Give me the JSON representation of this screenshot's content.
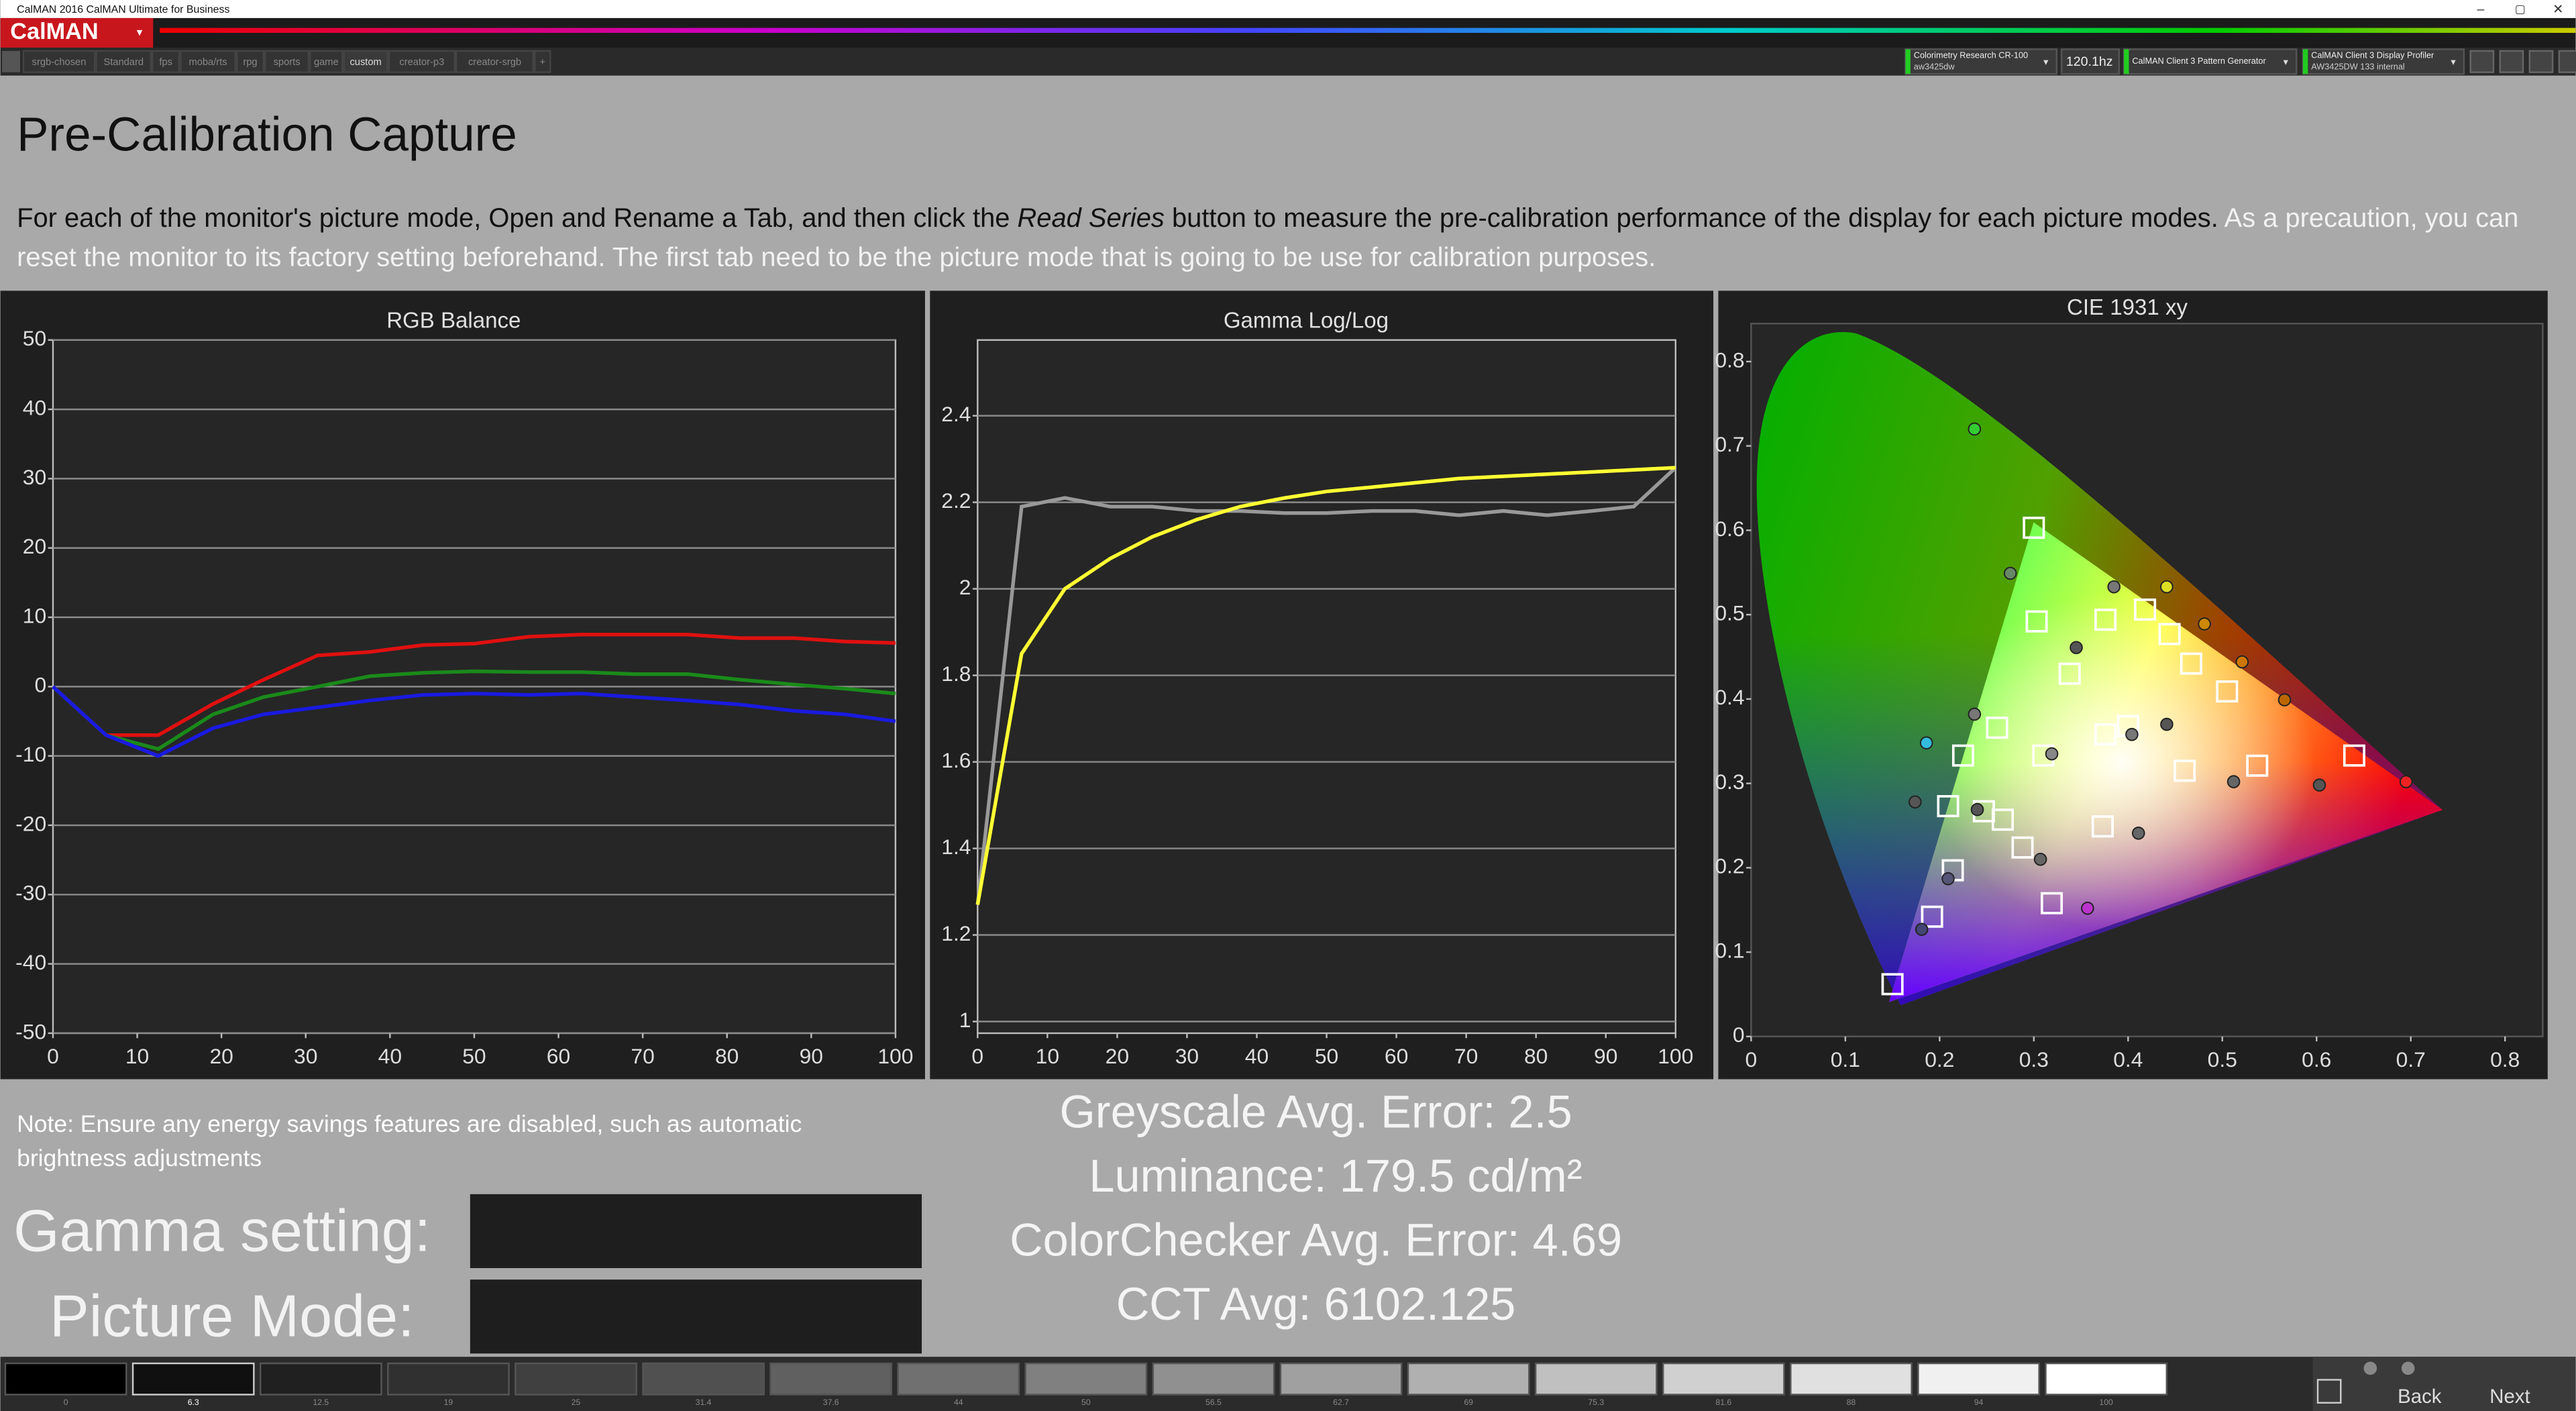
{
  "window": {
    "title": "CalMAN 2016 CalMAN Ultimate for Business"
  },
  "logo": "CalMAN",
  "tabs": [
    "srgb-chosen",
    "Standard",
    "fps",
    "moba/rts",
    "rpg",
    "sports",
    "game",
    "custom",
    "creator-p3",
    "creator-srgb",
    "+"
  ],
  "toolbar": {
    "meter": "Colorimetry Research CR-100",
    "meter_sub": "aw3425dw",
    "refresh": "120.1hz",
    "generator": "CalMAN Client 3 Pattern Generator",
    "profiler": "CalMAN Client 3 Display Profiler",
    "profiler_sub": "AW3425DW 133 internal"
  },
  "header": {
    "title": "Pre-Calibration Capture",
    "text_1": "For each of the monitor's picture mode, Open and Rename a Tab, and then click the",
    "text_em": "Read Series",
    "text_2": "button to measure the pre-calibration performance of the display for each picture modes.",
    "text_note": "As a precaution, you can reset the monitor to its factory setting beforehand. The first tab need to be the picture mode that is going to be use for calibration purposes."
  },
  "chart_data": [
    {
      "type": "line",
      "title": "RGB Balance",
      "x": [
        0,
        6.3,
        12.5,
        19,
        25,
        31.4,
        37.6,
        44,
        50,
        56.5,
        62.7,
        69,
        75.3,
        81.6,
        88,
        94,
        100
      ],
      "series": [
        {
          "color": "#e01010",
          "values": [
            0,
            -7,
            -7,
            -2.5,
            1,
            4.5,
            5,
            6,
            6.2,
            7.2,
            7.5,
            7.5,
            7.5,
            7,
            7,
            6.5,
            6.3
          ]
        },
        {
          "color": "#1a8a1a",
          "values": [
            0,
            -7,
            -9,
            -4,
            -1.5,
            0,
            1.5,
            2,
            2.2,
            2.1,
            2.1,
            1.8,
            1.8,
            1,
            0.3,
            -0.3,
            -1
          ]
        },
        {
          "color": "#1a1ae0",
          "values": [
            0,
            -7,
            -10,
            -6,
            -4,
            -3,
            -2,
            -1.2,
            -1,
            -1.2,
            -1,
            -1.5,
            -2,
            -2.6,
            -3.5,
            -4,
            -5
          ]
        }
      ],
      "xlim": [
        0,
        100
      ],
      "ylim": [
        -50,
        50
      ],
      "xticks": [
        0,
        10,
        20,
        30,
        40,
        50,
        60,
        70,
        80,
        90,
        100
      ],
      "yticks": [
        -50,
        -40,
        -30,
        -20,
        -10,
        0,
        10,
        20,
        30,
        40,
        50
      ],
      "grid": true
    },
    {
      "type": "line",
      "title": "Gamma Log/Log",
      "x": [
        0,
        6.3,
        12.5,
        19,
        25,
        31.4,
        37.6,
        44,
        50,
        56.5,
        62.7,
        69,
        75.3,
        81.6,
        88,
        94,
        100
      ],
      "series": [
        {
          "color": "#999999",
          "values": [
            1.27,
            2.19,
            2.21,
            2.19,
            2.19,
            2.18,
            2.18,
            2.175,
            2.175,
            2.18,
            2.18,
            2.17,
            2.18,
            2.17,
            2.18,
            2.19,
            2.28
          ]
        },
        {
          "color": "#ffff33",
          "values": [
            1.27,
            1.85,
            2.0,
            2.07,
            2.12,
            2.16,
            2.19,
            2.21,
            2.225,
            2.235,
            2.245,
            2.255,
            2.26,
            2.265,
            2.27,
            2.275,
            2.28
          ]
        }
      ],
      "xlim": [
        0,
        100
      ],
      "ylim": [
        0.973,
        2.575
      ],
      "xticks": [
        0,
        10,
        20,
        30,
        40,
        50,
        60,
        70,
        80,
        90,
        100
      ],
      "yticks": [
        1,
        1.2,
        1.4,
        1.6,
        1.8,
        2,
        2.2,
        2.4
      ],
      "grid": true
    },
    {
      "type": "scatter",
      "title": "CIE 1931 xy",
      "targets": {
        "x": [
          0.3,
          0.303,
          0.376,
          0.418,
          0.444,
          0.338,
          0.467,
          0.505,
          0.261,
          0.376,
          0.4,
          0.225,
          0.31,
          0.64,
          0.537,
          0.46,
          0.209,
          0.247,
          0.267,
          0.373,
          0.288,
          0.214,
          0.319,
          0.192,
          0.15
        ],
        "y": [
          0.603,
          0.492,
          0.494,
          0.506,
          0.477,
          0.43,
          0.442,
          0.409,
          0.366,
          0.358,
          0.368,
          0.333,
          0.333,
          0.333,
          0.321,
          0.315,
          0.273,
          0.267,
          0.257,
          0.249,
          0.224,
          0.197,
          0.158,
          0.142,
          0.062
        ]
      },
      "measurements": {
        "x": [
          0.237,
          0.275,
          0.385,
          0.441,
          0.481,
          0.345,
          0.521,
          0.566,
          0.237,
          0.441,
          0.404,
          0.319,
          0.186,
          0.174,
          0.24,
          0.512,
          0.603,
          0.695,
          0.411,
          0.307,
          0.209,
          0.357,
          0.181
        ],
        "y": [
          0.72,
          0.549,
          0.533,
          0.533,
          0.489,
          0.461,
          0.444,
          0.399,
          0.382,
          0.37,
          0.358,
          0.335,
          0.348,
          0.278,
          0.269,
          0.302,
          0.298,
          0.302,
          0.241,
          0.21,
          0.187,
          0.152,
          0.127
        ],
        "colors": [
          "#33cc33",
          "#668866",
          "#777777",
          "#dddd22",
          "#cc8800",
          "#555555",
          "#cc7700",
          "#bb6600",
          "#777777",
          "#555555",
          "#777777",
          "#888888",
          "#33bbdd",
          "#555555",
          "#555555",
          "#666666",
          "#555555",
          "#ee2222",
          "#666666",
          "#666666",
          "#555577",
          "#bb33cc",
          "#444477"
        ]
      },
      "xlim": [
        0,
        0.84
      ],
      "ylim": [
        0,
        0.845
      ],
      "xticks": [
        0,
        0.1,
        0.2,
        0.3,
        0.4,
        0.5,
        0.6,
        0.7,
        0.8
      ],
      "yticks": [
        0,
        0.1,
        0.2,
        0.3,
        0.4,
        0.5,
        0.6,
        0.7,
        0.8
      ],
      "grid": false
    }
  ],
  "stats": [
    "Greyscale Avg. Error: 2.5",
    "Luminance: 179.5 cd/m²",
    "ColorChecker Avg. Error: 4.69",
    "CCT Avg: 6102.125"
  ],
  "note": "Note: Ensure any energy savings features are disabled, such as automatic brightness adjustments",
  "fields": [
    "Gamma setting:",
    "Picture Mode:"
  ],
  "swatches": [
    0,
    6.3,
    12.5,
    19,
    25,
    31.4,
    37.6,
    44,
    50,
    56.5,
    62.7,
    69,
    75.3,
    81.6,
    88,
    94,
    100
  ],
  "nav": [
    "Back",
    "Next"
  ]
}
